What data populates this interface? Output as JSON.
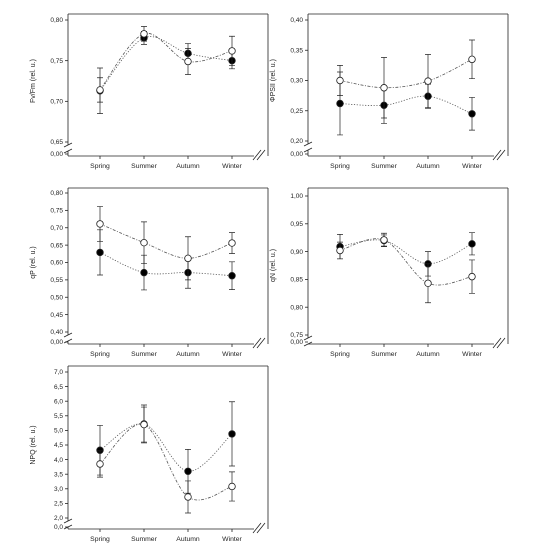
{
  "colors": {
    "axis": "#222222",
    "filled_marker": "#000000",
    "open_marker": "#ffffff",
    "line": "#555555"
  },
  "chart_data": [
    {
      "type": "line",
      "ylabel": "Fv/Fm (rel. u.)",
      "categories": [
        "Spring",
        "Summer",
        "Autumn",
        "Winter"
      ],
      "yticks": [
        "0,00",
        "0,65",
        "0,70",
        "0,75",
        "0,80"
      ],
      "ylim": [
        0.65,
        0.8
      ],
      "axis_break": true,
      "series": [
        {
          "marker": "filled",
          "values": [
            0.713,
            0.778,
            0.759,
            0.75
          ],
          "errors": [
            0.028,
            0.008,
            0.012,
            0.01
          ]
        },
        {
          "marker": "open",
          "values": [
            0.714,
            0.783,
            0.749,
            0.762
          ],
          "errors": [
            0.015,
            0.009,
            0.016,
            0.018
          ]
        }
      ]
    },
    {
      "type": "line",
      "ylabel": "ΦPSII (rel. u.)",
      "categories": [
        "Spring",
        "Summer",
        "Autumn",
        "Winter"
      ],
      "yticks": [
        "0,00",
        "0,20",
        "0,25",
        "0,30",
        "0,35",
        "0,40"
      ],
      "ylim": [
        0.2,
        0.4
      ],
      "axis_break": true,
      "series": [
        {
          "marker": "filled",
          "values": [
            0.262,
            0.259,
            0.274,
            0.245
          ],
          "errors": [
            0.052,
            0.03,
            0.02,
            0.027
          ]
        },
        {
          "marker": "open",
          "values": [
            0.3,
            0.288,
            0.299,
            0.335
          ],
          "errors": [
            0.025,
            0.05,
            0.044,
            0.032
          ]
        }
      ]
    },
    {
      "type": "line",
      "ylabel": "qP (rel. u.)",
      "categories": [
        "Spring",
        "Summer",
        "Autumn",
        "Winter"
      ],
      "yticks": [
        "0,00",
        "0,40",
        "0,45",
        "0,50",
        "0,55",
        "0,60",
        "0,65",
        "0,70",
        "0,75",
        "0,80"
      ],
      "ylim": [
        0.4,
        0.8
      ],
      "axis_break": true,
      "series": [
        {
          "marker": "filled",
          "values": [
            0.629,
            0.571,
            0.571,
            0.562
          ],
          "errors": [
            0.065,
            0.05,
            0.045,
            0.04
          ]
        },
        {
          "marker": "open",
          "values": [
            0.711,
            0.657,
            0.612,
            0.656
          ],
          "errors": [
            0.05,
            0.06,
            0.062,
            0.03
          ]
        }
      ]
    },
    {
      "type": "line",
      "ylabel": "qN (rel. u.)",
      "categories": [
        "Spring",
        "Summer",
        "Autumn",
        "Winter"
      ],
      "yticks": [
        "0,00",
        "0,75",
        "0,80",
        "0,85",
        "0,90",
        "0,95",
        "1,00"
      ],
      "ylim": [
        0.75,
        1.0
      ],
      "axis_break": true,
      "series": [
        {
          "marker": "filled",
          "values": [
            0.909,
            0.92,
            0.878,
            0.914
          ],
          "errors": [
            0.022,
            0.01,
            0.022,
            0.02
          ]
        },
        {
          "marker": "open",
          "values": [
            0.902,
            0.921,
            0.843,
            0.855
          ],
          "errors": [
            0.015,
            0.012,
            0.035,
            0.03
          ]
        }
      ]
    },
    {
      "type": "line",
      "ylabel": "NPQ (rel. u.)",
      "categories": [
        "Spring",
        "Summer",
        "Autumn",
        "Winter"
      ],
      "yticks": [
        "0,0",
        "2,0",
        "2,5",
        "3,0",
        "3,5",
        "4,0",
        "4,5",
        "5,0",
        "5,5",
        "6,0",
        "6,5",
        "7,0"
      ],
      "ylim": [
        2.0,
        7.0
      ],
      "axis_break": true,
      "series": [
        {
          "marker": "filled",
          "values": [
            4.32,
            5.22,
            3.6,
            4.88
          ],
          "errors": [
            0.85,
            0.65,
            0.75,
            1.1
          ]
        },
        {
          "marker": "open",
          "values": [
            3.85,
            5.2,
            2.72,
            3.08
          ],
          "errors": [
            0.45,
            0.6,
            0.55,
            0.5
          ]
        }
      ]
    }
  ]
}
